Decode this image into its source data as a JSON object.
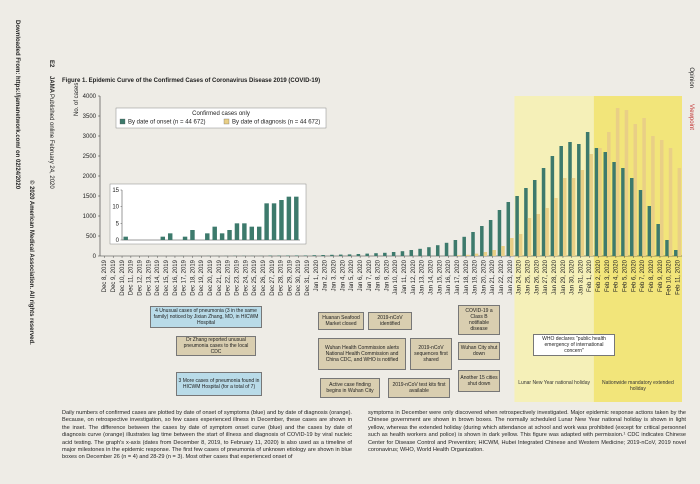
{
  "page": {
    "section": "Opinion",
    "subsection": "Viewpoint",
    "page_number": "E2",
    "journal": "JAMA",
    "published": "Published online February 24, 2020",
    "downloaded": "Downloaded From: https://jamanetwork.com/ on 02/24/2020",
    "copyright": "© 2020 American Medical Association. All rights reserved.",
    "caption": [
      "Daily numbers of confirmed cases are plotted by date of onset of symptoms (blue) and by date of diagnosis (orange). Because, on retrospective investigation, so few cases experienced illness in December, these cases are shown in the inset. The difference between the cases by date of symptom onset curve (blue) and the cases by date of diagnosis curve (orange) illustrates lag time between the start of illness and diagnosis of COVID-19 by viral nucleic acid testing. The graph's x-axis (dates from December 8, 2019, to February 11, 2020) is also used as a timeline of major milestones in the epidemic response. The first few cases of pneumonia of unknown etiology are shown in blue boxes on December 26 (n = 4) and 28-29 (n = 3). Most other cases that experienced onset of",
      "symptoms in December were only discovered when retrospectively investigated. Major epidemic response actions taken by the Chinese government are shown in brown boxes. The normally scheduled Lunar New Year national holiday is shown in light yellow, whereas the extended holiday (during which attendance at school and work was prohibited (except for critical personnel such as health workers and police) is shown in dark yellow. This figure was adapted with permission.¹ CDC indicates Chinese Center for Disease Control and Prevention; HICWM, Hubei Integrated Chinese and Western Medicine; 2019-nCoV, 2019 novel coronavirus; WHO, World Health Organization."
    ]
  },
  "chart_data": {
    "type": "bar",
    "title": "Figure 1. Epidemic Curve of the Confirmed Cases of Coronavirus Disease 2019 (COVID-19)",
    "y_label": "No. of cases",
    "legend_title": "Confirmed cases only",
    "categories": [
      "Dec 8, 2019",
      "Dec 9, 2019",
      "Dec 10, 2019",
      "Dec 11, 2019",
      "Dec 12, 2019",
      "Dec 13, 2019",
      "Dec 14, 2019",
      "Dec 15, 2019",
      "Dec 16, 2019",
      "Dec 17, 2019",
      "Dec 18, 2019",
      "Dec 19, 2019",
      "Dec 20, 2019",
      "Dec 21, 2019",
      "Dec 22, 2019",
      "Dec 23, 2019",
      "Dec 24, 2019",
      "Dec 25, 2019",
      "Dec 26, 2019",
      "Dec 27, 2019",
      "Dec 28, 2019",
      "Dec 29, 2019",
      "Dec 30, 2019",
      "Dec 31, 2019",
      "Jan 1, 2020",
      "Jan 2, 2020",
      "Jan 3, 2020",
      "Jan 4, 2020",
      "Jan 5, 2020",
      "Jan 6, 2020",
      "Jan 7, 2020",
      "Jan 8, 2020",
      "Jan 9, 2020",
      "Jan 10, 2020",
      "Jan 11, 2020",
      "Jan 12, 2020",
      "Jan 13, 2020",
      "Jan 14, 2020",
      "Jan 15, 2020",
      "Jan 16, 2020",
      "Jan 17, 2020",
      "Jan 18, 2020",
      "Jan 19, 2020",
      "Jan 20, 2020",
      "Jan 21, 2020",
      "Jan 22, 2020",
      "Jan 23, 2020",
      "Jan 24, 2020",
      "Jan 25, 2020",
      "Jan 26, 2020",
      "Jan 27, 2020",
      "Jan 28, 2020",
      "Jan 29, 2020",
      "Jan 30, 2020",
      "Jan 31, 2020",
      "Feb 1, 2020",
      "Feb 2, 2020",
      "Feb 3, 2020",
      "Feb 4, 2020",
      "Feb 5, 2020",
      "Feb 6, 2020",
      "Feb 7, 2020",
      "Feb 8, 2020",
      "Feb 9, 2020",
      "Feb 10, 2020",
      "Feb 11, 2020"
    ],
    "series": [
      {
        "name": "By date of onset (n = 44 672)",
        "color": "#3d7a6c",
        "values": [
          1,
          0,
          0,
          0,
          0,
          1,
          2,
          0,
          1,
          3,
          0,
          2,
          4,
          2,
          3,
          5,
          5,
          4,
          4,
          11,
          11,
          12,
          13,
          13,
          20,
          25,
          30,
          35,
          40,
          50,
          60,
          70,
          80,
          100,
          120,
          150,
          180,
          220,
          270,
          330,
          400,
          480,
          600,
          750,
          900,
          1150,
          1350,
          1500,
          1700,
          1900,
          2200,
          2500,
          2750,
          2850,
          2800,
          3100,
          2700,
          2600,
          2350,
          2200,
          1950,
          1650,
          1250,
          800,
          400,
          150
        ]
      },
      {
        "name": "By date of diagnosis (n = 44 672)",
        "color": "#e9cf86",
        "values": [
          0,
          0,
          0,
          0,
          0,
          0,
          0,
          0,
          0,
          0,
          0,
          0,
          0,
          0,
          0,
          0,
          0,
          0,
          0,
          0,
          0,
          0,
          0,
          0,
          0,
          0,
          0,
          0,
          0,
          0,
          0,
          0,
          0,
          0,
          0,
          0,
          0,
          0,
          0,
          0,
          20,
          30,
          60,
          100,
          150,
          250,
          450,
          550,
          950,
          1050,
          1200,
          1450,
          1950,
          1950,
          2150,
          2550,
          2700,
          3100,
          3700,
          3650,
          3300,
          3450,
          3000,
          2900,
          2700,
          2200
        ]
      }
    ],
    "ylim": [
      0,
      4000
    ],
    "yticks": [
      0,
      500,
      1000,
      1500,
      2000,
      2500,
      3000,
      3500,
      4000
    ],
    "inset": {
      "ylim": [
        0,
        15
      ],
      "yticks": [
        0,
        5,
        10,
        15
      ]
    },
    "annotations": [
      {
        "text": "4 Unusual cases of pneumonia (3 in the same family) noticed by Jixian Zhang, MD, in HICWM Hospital",
        "color": "#b9dbe8"
      },
      {
        "text": "Dr Zhang reported unusual pneumonia cases to the local CDC",
        "color": "#d9ceb0"
      },
      {
        "text": "3 More cases of pneumonia found in HICWM Hospital (for a total of 7)",
        "color": "#b9dbe8"
      },
      {
        "text": "Huanan Seafood Market closed",
        "color": "#d9ceb0"
      },
      {
        "text": "2019-nCoV identified",
        "color": "#d9ceb0"
      },
      {
        "text": "Wuhan Health Commission alerts National Health Commission and China CDC, and WHO is notified",
        "color": "#d9ceb0"
      },
      {
        "text": "2019-nCoV sequences first shared",
        "color": "#d9ceb0"
      },
      {
        "text": "Active case finding begins in Wuhan City",
        "color": "#d9ceb0"
      },
      {
        "text": "2019-nCoV test kits first available",
        "color": "#d9ceb0"
      },
      {
        "text": "COVID-19 a Class B notifiable disease",
        "color": "#d9ceb0"
      },
      {
        "text": "Wuhan City shut down",
        "color": "#d9ceb0"
      },
      {
        "text": "Another 15 cities shut down",
        "color": "#d9ceb0"
      },
      {
        "text": "WHO declares \"public health emergency of international concern\"",
        "color": "#ffffff"
      }
    ],
    "holidays": [
      {
        "label": "Lunar New Year national holiday",
        "color": "#f5f0b8"
      },
      {
        "label": "Nationwide mandatory extended holiday",
        "color": "#f2e57a"
      }
    ]
  }
}
